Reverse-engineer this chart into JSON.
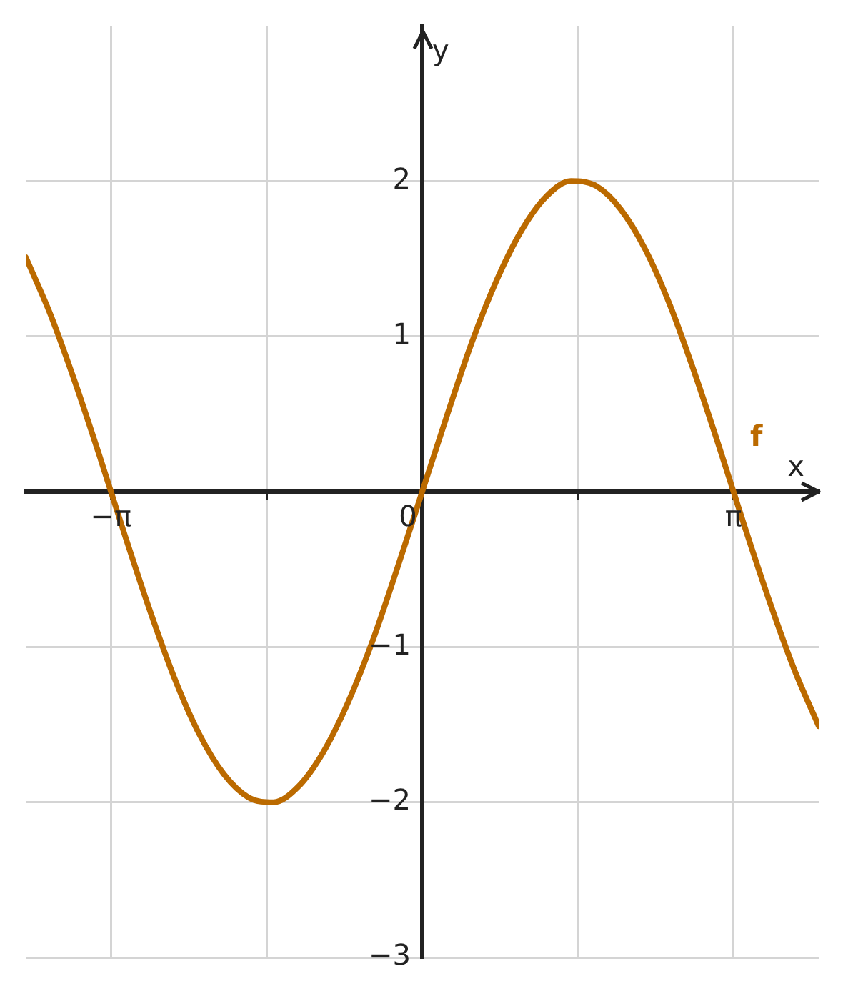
{
  "chart_data": {
    "type": "line",
    "xlabel": "x",
    "ylabel": "y",
    "xlim": [
      -4,
      4
    ],
    "ylim": [
      -3,
      3
    ],
    "xticks": [
      {
        "value": -3.14,
        "label": "−π"
      },
      {
        "value": -1.57,
        "label": null
      },
      {
        "value": 0,
        "label": "0"
      },
      {
        "value": 1.57,
        "label": null
      },
      {
        "value": 3.14,
        "label": "π"
      }
    ],
    "yticks": [
      {
        "value": -3,
        "label": "−3"
      },
      {
        "value": -2,
        "label": "−2"
      },
      {
        "value": -1,
        "label": "−1"
      },
      {
        "value": 1,
        "label": "1"
      },
      {
        "value": 2,
        "label": "2"
      }
    ],
    "grid": true,
    "legend": false,
    "marker": "none",
    "line_style": "solid",
    "series": [
      {
        "name": "f",
        "color": "#bb6a00",
        "x": [
          -4,
          -3.75,
          -3.5,
          -3.25,
          -3,
          -2.75,
          -2.5,
          -2.25,
          -2,
          -1.75,
          -1.5,
          -1.25,
          -1,
          -0.75,
          -0.5,
          -0.25,
          0,
          0.25,
          0.5,
          0.75,
          1,
          1.25,
          1.5,
          1.75,
          2,
          2.25,
          2.5,
          2.75,
          3,
          3.25,
          3.5,
          3.75,
          4
        ],
        "values": [
          1.51,
          1.14,
          0.7,
          0.22,
          -0.28,
          -0.76,
          -1.2,
          -1.56,
          -1.82,
          -1.97,
          -2.0,
          -1.9,
          -1.68,
          -1.36,
          -0.96,
          -0.49,
          0,
          0.49,
          0.96,
          1.36,
          1.68,
          1.9,
          2.0,
          1.97,
          1.82,
          1.56,
          1.2,
          0.76,
          0.28,
          -0.22,
          -0.7,
          -1.14,
          -1.51
        ]
      }
    ]
  }
}
